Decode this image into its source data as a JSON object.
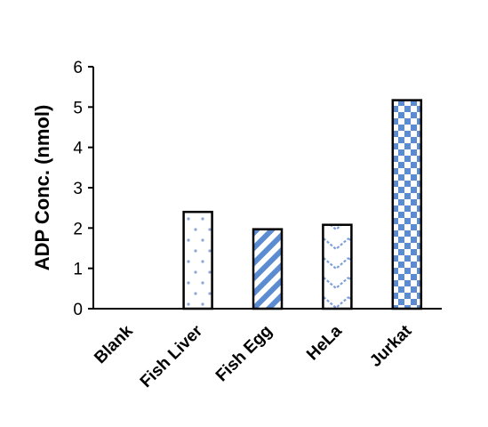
{
  "chart_data": {
    "type": "bar",
    "title": "",
    "xlabel": "",
    "ylabel": "ADP Conc. (nmol)",
    "categories": [
      "Blank",
      "Fish Liver",
      "Fish Egg",
      "HeLa",
      "Jurkat"
    ],
    "values": [
      0,
      2.4,
      1.97,
      2.08,
      5.17
    ],
    "ylim": [
      0,
      6
    ],
    "yticks": [
      "0",
      "1",
      "2",
      "3",
      "4",
      "5",
      "6"
    ],
    "grid": false,
    "legend": "none",
    "colors": {
      "pattern": "#5b8bd0",
      "outline": "#000000",
      "background": "#ffffff"
    },
    "bar_patterns": [
      "none",
      "dots",
      "diagonal-stripes",
      "chevrons",
      "checkerboard"
    ]
  }
}
